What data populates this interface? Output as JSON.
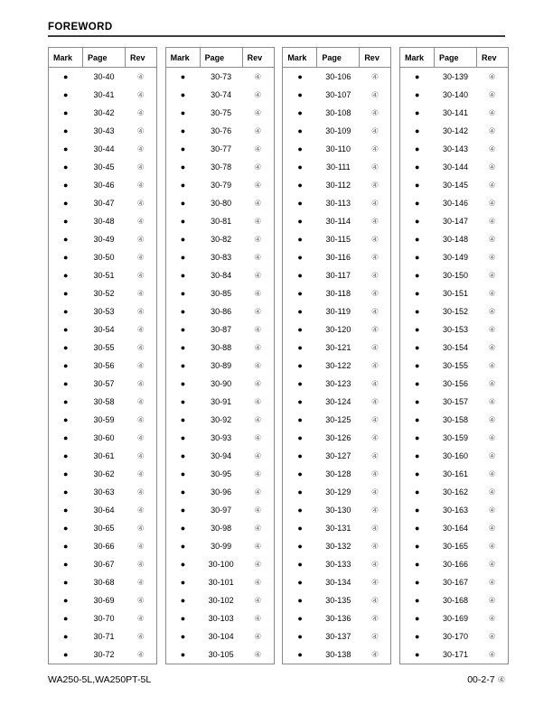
{
  "page_title": "FOREWORD",
  "table_headers": [
    "Mark",
    "Page",
    "Rev"
  ],
  "mark_symbol": "●",
  "rev_symbol": "④",
  "tables": [
    {
      "pages": [
        "30-40",
        "30-41",
        "30-42",
        "30-43",
        "30-44",
        "30-45",
        "30-46",
        "30-47",
        "30-48",
        "30-49",
        "30-50",
        "30-51",
        "30-52",
        "30-53",
        "30-54",
        "30-55",
        "30-56",
        "30-57",
        "30-58",
        "30-59",
        "30-60",
        "30-61",
        "30-62",
        "30-63",
        "30-64",
        "30-65",
        "30-66",
        "30-67",
        "30-68",
        "30-69",
        "30-70",
        "30-71",
        "30-72"
      ]
    },
    {
      "pages": [
        "30-73",
        "30-74",
        "30-75",
        "30-76",
        "30-77",
        "30-78",
        "30-79",
        "30-80",
        "30-81",
        "30-82",
        "30-83",
        "30-84",
        "30-85",
        "30-86",
        "30-87",
        "30-88",
        "30-89",
        "30-90",
        "30-91",
        "30-92",
        "30-93",
        "30-94",
        "30-95",
        "30-96",
        "30-97",
        "30-98",
        "30-99",
        "30-100",
        "30-101",
        "30-102",
        "30-103",
        "30-104",
        "30-105"
      ]
    },
    {
      "pages": [
        "30-106",
        "30-107",
        "30-108",
        "30-109",
        "30-110",
        "30-111",
        "30-112",
        "30-113",
        "30-114",
        "30-115",
        "30-116",
        "30-117",
        "30-118",
        "30-119",
        "30-120",
        "30-121",
        "30-122",
        "30-123",
        "30-124",
        "30-125",
        "30-126",
        "30-127",
        "30-128",
        "30-129",
        "30-130",
        "30-131",
        "30-132",
        "30-133",
        "30-134",
        "30-135",
        "30-136",
        "30-137",
        "30-138"
      ]
    },
    {
      "pages": [
        "30-139",
        "30-140",
        "30-141",
        "30-142",
        "30-143",
        "30-144",
        "30-145",
        "30-146",
        "30-147",
        "30-148",
        "30-149",
        "30-150",
        "30-151",
        "30-152",
        "30-153",
        "30-154",
        "30-155",
        "30-156",
        "30-157",
        "30-158",
        "30-159",
        "30-160",
        "30-161",
        "30-162",
        "30-163",
        "30-164",
        "30-165",
        "30-166",
        "30-167",
        "30-168",
        "30-169",
        "30-170",
        "30-171"
      ]
    }
  ],
  "footer": {
    "model": "WA250-5L,WA250PT-5L",
    "page_number": "00-2-7",
    "rev_symbol": "④"
  },
  "colors": {
    "table_border": "#8a8a8a",
    "rev_mark": "#777777",
    "text": "#000000"
  }
}
